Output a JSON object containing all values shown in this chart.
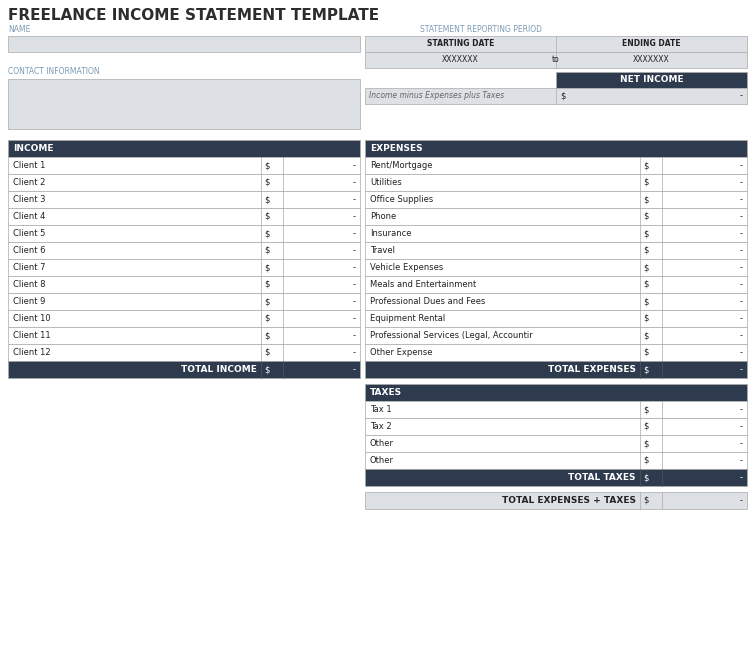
{
  "title": "FREELANCE INCOME STATEMENT TEMPLATE",
  "title_color": "#2d2d2d",
  "header_bg": "#2e3a4e",
  "header_fg": "#ffffff",
  "label_color": "#7a9bb5",
  "cell_bg_light": "#dde1e5",
  "cell_bg_white": "#ffffff",
  "border_color": "#aaaaaa",
  "text_color": "#222222",
  "italic_color": "#666666",
  "name_label": "NAME",
  "contact_label": "CONTACT INFORMATION",
  "period_label": "STATEMENT REPORTING PERIOD",
  "starting_date_label": "STARTING DATE",
  "ending_date_label": "ENDING DATE",
  "date_placeholder": "XXXXXXX",
  "to_text": "to",
  "net_income_label": "NET INCOME",
  "net_income_desc": "Income minus Expenses plus Taxes",
  "dollar_sign": "$",
  "dash": "-",
  "income_header": "INCOME",
  "income_rows": [
    "Client 1",
    "Client 2",
    "Client 3",
    "Client 4",
    "Client 5",
    "Client 6",
    "Client 7",
    "Client 8",
    "Client 9",
    "Client 10",
    "Client 11",
    "Client 12"
  ],
  "income_total_label": "TOTAL INCOME",
  "expenses_header": "EXPENSES",
  "expenses_rows": [
    "Rent/Mortgage",
    "Utilities",
    "Office Supplies",
    "Phone",
    "Insurance",
    "Travel",
    "Vehicle Expenses",
    "Meals and Entertainment",
    "Professional Dues and Fees",
    "Equipment Rental",
    "Professional Services (Legal, Accountir",
    "Other Expense"
  ],
  "expenses_total_label": "TOTAL EXPENSES",
  "taxes_header": "TAXES",
  "taxes_rows": [
    "Tax 1",
    "Tax 2",
    "Other",
    "Other"
  ],
  "taxes_total_label": "TOTAL TAXES",
  "total_exp_taxes_label": "TOTAL EXPENSES + TAXES",
  "bg_color": "#ffffff"
}
